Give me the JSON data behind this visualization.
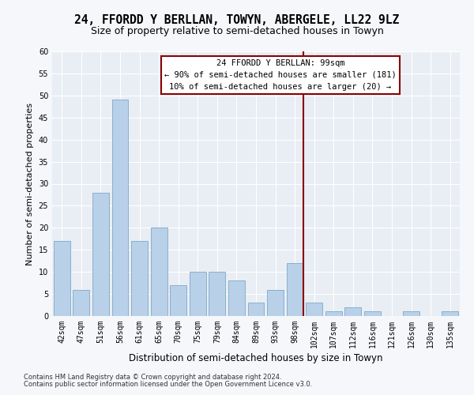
{
  "title": "24, FFORDD Y BERLLAN, TOWYN, ABERGELE, LL22 9LZ",
  "subtitle": "Size of property relative to semi-detached houses in Towyn",
  "xlabel": "Distribution of semi-detached houses by size in Towyn",
  "ylabel": "Number of semi-detached properties",
  "categories": [
    "42sqm",
    "47sqm",
    "51sqm",
    "56sqm",
    "61sqm",
    "65sqm",
    "70sqm",
    "75sqm",
    "79sqm",
    "84sqm",
    "89sqm",
    "93sqm",
    "98sqm",
    "102sqm",
    "107sqm",
    "112sqm",
    "116sqm",
    "121sqm",
    "126sqm",
    "130sqm",
    "135sqm"
  ],
  "values": [
    17,
    6,
    28,
    49,
    17,
    20,
    7,
    10,
    10,
    8,
    3,
    6,
    12,
    3,
    1,
    2,
    1,
    0,
    1,
    0,
    1
  ],
  "bar_color": "#b8d0e8",
  "bar_edge_color": "#8ab0cc",
  "vline_index": 12,
  "vline_color": "#8b0000",
  "ylim": [
    0,
    60
  ],
  "yticks": [
    0,
    5,
    10,
    15,
    20,
    25,
    30,
    35,
    40,
    45,
    50,
    55,
    60
  ],
  "annotation_title": "24 FFORDD Y BERLLAN: 99sqm",
  "annotation_line1": "← 90% of semi-detached houses are smaller (181)",
  "annotation_line2": "10% of semi-detached houses are larger (20) →",
  "annotation_box_color": "#8b0000",
  "footer1": "Contains HM Land Registry data © Crown copyright and database right 2024.",
  "footer2": "Contains public sector information licensed under the Open Government Licence v3.0.",
  "bg_color": "#e8eef4",
  "grid_color": "#ffffff",
  "fig_facecolor": "#f5f7fa",
  "title_fontsize": 10.5,
  "subtitle_fontsize": 9,
  "ylabel_fontsize": 8,
  "xlabel_fontsize": 8.5,
  "tick_fontsize": 7,
  "ann_fontsize": 7.5,
  "footer_fontsize": 6
}
